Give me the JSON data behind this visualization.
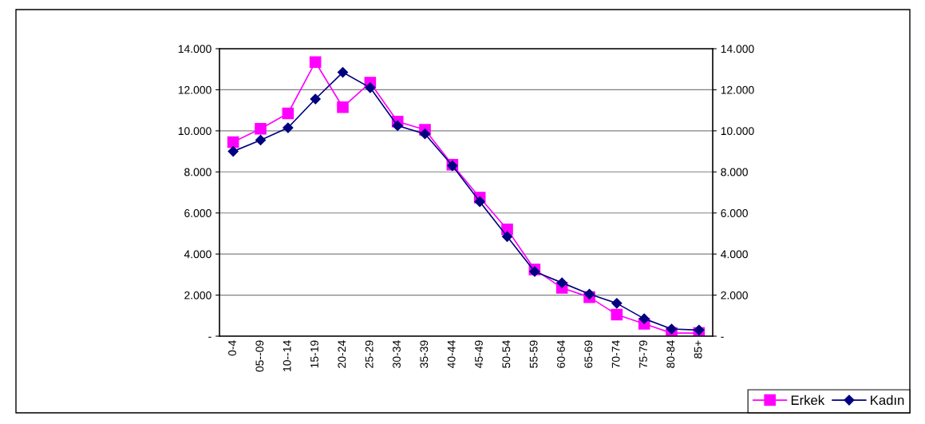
{
  "chart_data": {
    "type": "line",
    "categories": [
      "0-4",
      "05--09",
      "10--14",
      "15-19",
      "20-24",
      "25-29",
      "30-34",
      "35-39",
      "40-44",
      "45-49",
      "50-54",
      "55-59",
      "60-64",
      "65-69",
      "70-74",
      "75-79",
      "80-84",
      "85+"
    ],
    "series": [
      {
        "name": "Erkek",
        "color": "#ff00ff",
        "marker": "square",
        "values": [
          9450,
          10100,
          10850,
          13350,
          11150,
          12350,
          10450,
          10050,
          8350,
          6750,
          5200,
          3250,
          2350,
          1900,
          1050,
          600,
          150,
          150
        ]
      },
      {
        "name": "Kadın",
        "color": "#000080",
        "marker": "diamond",
        "values": [
          9000,
          9550,
          10150,
          11550,
          12850,
          12100,
          10250,
          9850,
          8300,
          6550,
          4850,
          3150,
          2600,
          2050,
          1600,
          850,
          350,
          300
        ]
      }
    ],
    "ylim": [
      0,
      14000
    ],
    "yticks": [
      {
        "value": 0,
        "label": "-"
      },
      {
        "value": 2000,
        "label": "2.000"
      },
      {
        "value": 4000,
        "label": "4.000"
      },
      {
        "value": 6000,
        "label": "6.000"
      },
      {
        "value": 8000,
        "label": "8.000"
      },
      {
        "value": 10000,
        "label": "10.000"
      },
      {
        "value": 12000,
        "label": "12.000"
      },
      {
        "value": 14000,
        "label": "14.000"
      }
    ],
    "y2lim": [
      0,
      14000
    ],
    "y2ticks": [
      {
        "value": 0,
        "label": "-"
      },
      {
        "value": 2000,
        "label": "2.000"
      },
      {
        "value": 4000,
        "label": "4.000"
      },
      {
        "value": 6000,
        "label": "6.000"
      },
      {
        "value": 8000,
        "label": "8.000"
      },
      {
        "value": 10000,
        "label": "10.000"
      },
      {
        "value": 12000,
        "label": "12.000"
      },
      {
        "value": 14000,
        "label": "14.000"
      }
    ],
    "grid": true,
    "legend": "bottom right",
    "line_style": "solid"
  }
}
